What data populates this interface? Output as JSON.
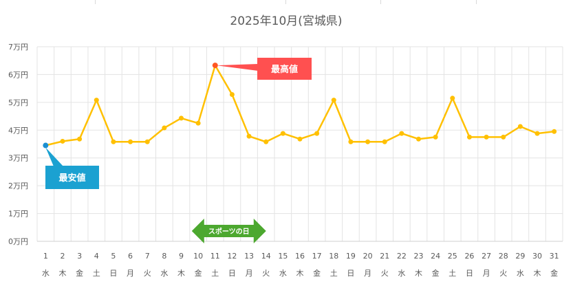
{
  "chart_data": {
    "type": "line",
    "title": "2025年10月(宮城県)",
    "xlabel": "",
    "ylabel": "",
    "ylim": [
      0,
      70000
    ],
    "yticks": [
      0,
      10000,
      20000,
      30000,
      40000,
      50000,
      60000,
      70000
    ],
    "ytick_labels": [
      "0万円",
      "1万円",
      "2万円",
      "3万円",
      "4万円",
      "5万円",
      "6万円",
      "7万円"
    ],
    "grid": true,
    "categories": [
      "1",
      "2",
      "3",
      "4",
      "5",
      "6",
      "7",
      "8",
      "9",
      "10",
      "11",
      "12",
      "13",
      "14",
      "15",
      "16",
      "17",
      "18",
      "19",
      "20",
      "21",
      "22",
      "23",
      "24",
      "25",
      "26",
      "27",
      "28",
      "29",
      "30",
      "31"
    ],
    "weekdays": [
      "水",
      "木",
      "金",
      "土",
      "日",
      "月",
      "火",
      "水",
      "木",
      "金",
      "土",
      "日",
      "月",
      "火",
      "水",
      "木",
      "金",
      "土",
      "日",
      "月",
      "火",
      "水",
      "木",
      "金",
      "土",
      "日",
      "月",
      "火",
      "水",
      "木",
      "金"
    ],
    "series": [
      {
        "color": "#FFC000",
        "values": [
          34500,
          36000,
          36800,
          50800,
          35800,
          35800,
          35800,
          40800,
          44300,
          42500,
          63300,
          52800,
          37800,
          35800,
          38800,
          36800,
          38800,
          50800,
          35800,
          35800,
          35800,
          38800,
          36800,
          37500,
          51500,
          37500,
          37500,
          37500,
          41300,
          38800,
          39500
        ]
      }
    ],
    "annotations": {
      "max": {
        "label": "最高値",
        "index": 10,
        "color": "#FF5050",
        "point_color": "#FF5722"
      },
      "min": {
        "label": "最安値",
        "index": 0,
        "color": "#1BA1D1",
        "point_color": "#1B8FD1"
      },
      "banner": {
        "label": "スポーツの日",
        "index": 10,
        "color": "#4CA82F"
      }
    }
  }
}
